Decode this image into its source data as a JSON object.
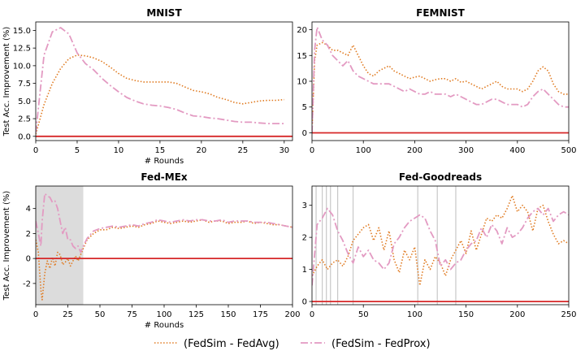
{
  "colors": {
    "fedavg": "#e07b22",
    "fedprox": "#e39ac2",
    "zero": "#d62728",
    "shade": "#dcdcdc",
    "grid": "#c8c8c8"
  },
  "legend": {
    "fedavg": "(FedSim - FedAvg)",
    "fedprox": "(FedSim - FedProx)"
  },
  "chart_data": [
    {
      "type": "line",
      "title": "MNIST",
      "xlabel": "# Rounds",
      "ylabel": "Test Acc. Improvement (%)",
      "xlim": [
        0,
        31
      ],
      "ylim": [
        -0.6,
        16.2
      ],
      "xticks": [
        0,
        5,
        10,
        15,
        20,
        25,
        30
      ],
      "yticks": [
        0.0,
        2.5,
        5.0,
        7.5,
        10.0,
        12.5,
        15.0
      ],
      "ytick_labels": [
        "0.0",
        "2.5",
        "5.0",
        "7.5",
        "10.0",
        "12.5",
        "15.0"
      ],
      "series": [
        {
          "name": "(FedSim - FedAvg)",
          "style": "dotted",
          "x": [
            0,
            1,
            2,
            3,
            4,
            5,
            6,
            7,
            8,
            9,
            10,
            11,
            12,
            13,
            14,
            15,
            16,
            17,
            18,
            19,
            20,
            21,
            22,
            23,
            24,
            25,
            26,
            27,
            28,
            29,
            30
          ],
          "y": [
            0.3,
            4.5,
            7.5,
            9.6,
            11.0,
            11.5,
            11.4,
            11.1,
            10.6,
            9.8,
            8.9,
            8.2,
            7.9,
            7.7,
            7.7,
            7.7,
            7.7,
            7.5,
            7.0,
            6.5,
            6.3,
            6.0,
            5.5,
            5.2,
            4.8,
            4.6,
            4.8,
            5.0,
            5.1,
            5.1,
            5.2
          ]
        },
        {
          "name": "(FedSim - FedProx)",
          "style": "dashdot",
          "x": [
            0,
            1,
            2,
            3,
            4,
            5,
            6,
            7,
            8,
            9,
            10,
            11,
            12,
            13,
            14,
            15,
            16,
            17,
            18,
            19,
            20,
            21,
            22,
            23,
            24,
            25,
            26,
            27,
            28,
            29,
            30
          ],
          "y": [
            0.5,
            11.5,
            14.8,
            15.4,
            14.5,
            11.8,
            10.3,
            9.4,
            8.2,
            7.2,
            6.3,
            5.5,
            5.0,
            4.6,
            4.4,
            4.3,
            4.1,
            3.8,
            3.3,
            2.9,
            2.8,
            2.6,
            2.5,
            2.3,
            2.1,
            2.0,
            2.0,
            1.9,
            1.8,
            1.8,
            1.8
          ]
        },
        {
          "name": "",
          "style": "zero",
          "x": [
            0,
            31
          ],
          "y": [
            0,
            0
          ]
        }
      ]
    },
    {
      "type": "line",
      "title": "FEMNIST",
      "xlabel": "",
      "ylabel": "",
      "xlim": [
        0,
        500
      ],
      "ylim": [
        -1.5,
        21.5
      ],
      "xticks": [
        0,
        100,
        200,
        300,
        400,
        500
      ],
      "yticks": [
        0,
        5,
        10,
        15,
        20
      ],
      "series": [
        {
          "name": "(FedSim - FedAvg)",
          "style": "dotted",
          "x": [
            0,
            5,
            10,
            20,
            30,
            40,
            50,
            60,
            70,
            80,
            90,
            100,
            110,
            120,
            130,
            140,
            150,
            160,
            170,
            180,
            190,
            200,
            210,
            220,
            230,
            240,
            250,
            260,
            270,
            280,
            290,
            300,
            310,
            320,
            330,
            340,
            350,
            360,
            370,
            380,
            390,
            400,
            410,
            420,
            430,
            440,
            450,
            460,
            470,
            480,
            490,
            500
          ],
          "y": [
            0,
            14,
            17,
            17.5,
            17,
            16,
            16,
            15.5,
            15,
            17,
            15,
            13,
            11.5,
            11,
            12,
            12.5,
            13,
            12,
            11.5,
            11,
            10.5,
            10.8,
            11,
            10.5,
            10,
            10.3,
            10.5,
            10.5,
            10,
            10.5,
            9.8,
            10,
            9.5,
            9,
            8.5,
            9,
            9.5,
            10,
            9,
            8.5,
            8.5,
            8.5,
            8,
            8.5,
            10,
            12,
            12.8,
            12,
            9.5,
            8,
            7.5,
            7.5
          ]
        },
        {
          "name": "(FedSim - FedProx)",
          "style": "dashdot",
          "x": [
            0,
            5,
            10,
            20,
            30,
            40,
            50,
            60,
            70,
            80,
            90,
            100,
            110,
            120,
            130,
            140,
            150,
            160,
            170,
            180,
            190,
            200,
            210,
            220,
            230,
            240,
            250,
            260,
            270,
            280,
            290,
            300,
            310,
            320,
            330,
            340,
            350,
            360,
            370,
            380,
            390,
            400,
            410,
            420,
            430,
            440,
            450,
            460,
            470,
            480,
            490,
            500
          ],
          "y": [
            0,
            16,
            20.5,
            18,
            17,
            15,
            14,
            13,
            14,
            12,
            11,
            10.5,
            10,
            9.5,
            9.5,
            9.5,
            9.5,
            9,
            8.5,
            8,
            8.5,
            8,
            7.5,
            7.5,
            8,
            7.5,
            7.5,
            7.5,
            7,
            7.5,
            7,
            6.5,
            6,
            5.5,
            5.5,
            6,
            6.5,
            6.5,
            6,
            5.5,
            5.5,
            5.5,
            5,
            5.5,
            7,
            8,
            8.5,
            7.5,
            6.5,
            5.5,
            5,
            5
          ]
        },
        {
          "name": "",
          "style": "zero",
          "x": [
            0,
            500
          ],
          "y": [
            0,
            0
          ]
        }
      ]
    },
    {
      "type": "line",
      "title": "Fed-MEx",
      "xlabel": "# Rounds",
      "ylabel": "Test Acc. Improvement (%)",
      "xlim": [
        0,
        200
      ],
      "ylim": [
        -3.7,
        5.8
      ],
      "xticks": [
        0,
        25,
        50,
        75,
        100,
        125,
        150,
        175,
        200
      ],
      "yticks": [
        -2,
        0,
        2,
        4
      ],
      "shaded_region": [
        0,
        37
      ],
      "series": [
        {
          "name": "(FedSim - FedAvg)",
          "style": "dotted",
          "x": [
            0,
            2,
            4,
            5,
            7,
            9,
            11,
            13,
            15,
            17,
            19,
            21,
            23,
            25,
            27,
            29,
            31,
            33,
            35,
            37,
            40,
            45,
            50,
            55,
            60,
            65,
            70,
            75,
            80,
            85,
            90,
            95,
            100,
            105,
            110,
            115,
            120,
            125,
            130,
            135,
            140,
            145,
            150,
            155,
            160,
            165,
            170,
            175,
            180,
            185,
            190,
            195,
            200
          ],
          "y": [
            1.5,
            0.5,
            -2.5,
            -3.3,
            -1.2,
            -0.2,
            -0.8,
            0.1,
            -0.6,
            0.5,
            0.3,
            -0.5,
            -0.3,
            0.0,
            -0.6,
            -0.2,
            0.2,
            -0.2,
            0.3,
            0.8,
            1.5,
            2.0,
            2.3,
            2.3,
            2.5,
            2.4,
            2.5,
            2.6,
            2.5,
            2.7,
            2.8,
            3.0,
            2.9,
            2.8,
            2.9,
            3.0,
            2.9,
            3.0,
            3.1,
            2.9,
            3.0,
            3.0,
            2.8,
            2.9,
            2.9,
            3.0,
            2.8,
            2.9,
            2.8,
            2.7,
            2.7,
            2.6,
            2.5
          ]
        },
        {
          "name": "(FedSim - FedProx)",
          "style": "dashdot",
          "x": [
            0,
            2,
            4,
            5,
            7,
            9,
            11,
            13,
            15,
            17,
            19,
            21,
            23,
            25,
            27,
            29,
            31,
            33,
            35,
            37,
            40,
            45,
            50,
            55,
            60,
            65,
            70,
            75,
            80,
            85,
            90,
            95,
            100,
            105,
            110,
            115,
            120,
            125,
            130,
            135,
            140,
            145,
            150,
            155,
            160,
            165,
            170,
            175,
            180,
            185,
            190,
            195,
            200
          ],
          "y": [
            3.0,
            2.0,
            1.0,
            3.0,
            5.2,
            5.0,
            4.9,
            4.5,
            4.6,
            4.0,
            3.0,
            2.0,
            2.5,
            1.5,
            1.5,
            1.0,
            0.8,
            1.0,
            0.5,
            1.0,
            1.6,
            2.2,
            2.4,
            2.5,
            2.6,
            2.5,
            2.6,
            2.7,
            2.6,
            2.8,
            2.9,
            3.1,
            3.0,
            2.9,
            3.0,
            3.1,
            3.0,
            3.1,
            3.1,
            3.0,
            3.0,
            3.1,
            2.9,
            3.0,
            3.0,
            3.0,
            2.9,
            2.9,
            2.9,
            2.8,
            2.7,
            2.6,
            2.5
          ]
        },
        {
          "name": "",
          "style": "zero",
          "x": [
            0,
            200
          ],
          "y": [
            0,
            0
          ]
        }
      ]
    },
    {
      "type": "line",
      "title": "Fed-Goodreads",
      "xlabel": "",
      "ylabel": "",
      "xlim": [
        0,
        250
      ],
      "ylim": [
        -0.1,
        3.6
      ],
      "xticks": [
        0,
        50,
        100,
        150,
        200,
        250
      ],
      "yticks": [
        0,
        1,
        2,
        3
      ],
      "vlines": [
        4,
        10,
        14,
        18,
        25,
        40,
        103,
        122,
        140
      ],
      "series": [
        {
          "name": "(FedSim - FedAvg)",
          "style": "dotted",
          "x": [
            0,
            5,
            10,
            15,
            20,
            25,
            30,
            35,
            40,
            45,
            50,
            55,
            60,
            65,
            70,
            75,
            80,
            85,
            90,
            95,
            100,
            105,
            110,
            115,
            120,
            125,
            130,
            135,
            140,
            145,
            150,
            155,
            160,
            165,
            170,
            175,
            180,
            185,
            190,
            195,
            200,
            205,
            210,
            215,
            220,
            225,
            230,
            235,
            240,
            245,
            250
          ],
          "y": [
            0.8,
            1.1,
            1.3,
            1.0,
            1.2,
            1.3,
            1.1,
            1.4,
            1.9,
            2.1,
            2.3,
            2.4,
            1.9,
            2.3,
            1.6,
            2.2,
            1.3,
            0.9,
            1.6,
            1.3,
            1.7,
            0.5,
            1.3,
            1.0,
            1.4,
            1.2,
            0.8,
            1.3,
            1.6,
            1.9,
            1.5,
            2.2,
            1.6,
            2.1,
            2.6,
            2.5,
            2.7,
            2.6,
            2.9,
            3.3,
            2.8,
            3.0,
            2.8,
            2.2,
            2.9,
            3.0,
            2.5,
            2.1,
            1.8,
            1.9,
            1.8
          ]
        },
        {
          "name": "(FedSim - FedProx)",
          "style": "dashdot",
          "x": [
            0,
            5,
            10,
            15,
            20,
            25,
            30,
            35,
            40,
            45,
            50,
            55,
            60,
            65,
            70,
            75,
            80,
            85,
            90,
            95,
            100,
            105,
            110,
            115,
            120,
            125,
            130,
            135,
            140,
            145,
            150,
            155,
            160,
            165,
            170,
            175,
            180,
            185,
            190,
            195,
            200,
            205,
            210,
            215,
            220,
            225,
            230,
            235,
            240,
            245,
            250
          ],
          "y": [
            0.5,
            2.4,
            2.6,
            2.9,
            2.7,
            2.2,
            1.9,
            1.5,
            1.2,
            1.7,
            1.4,
            1.6,
            1.3,
            1.2,
            1.0,
            1.2,
            1.8,
            2.0,
            2.3,
            2.5,
            2.6,
            2.7,
            2.6,
            2.2,
            1.9,
            1.1,
            1.3,
            1.0,
            1.2,
            1.3,
            1.6,
            1.8,
            1.9,
            2.3,
            2.0,
            2.4,
            2.2,
            1.8,
            2.3,
            2.0,
            2.1,
            2.3,
            2.6,
            2.8,
            2.9,
            2.7,
            2.9,
            2.5,
            2.7,
            2.8,
            2.7
          ]
        },
        {
          "name": "",
          "style": "zero",
          "x": [
            0,
            250
          ],
          "y": [
            0,
            0
          ]
        }
      ]
    }
  ]
}
